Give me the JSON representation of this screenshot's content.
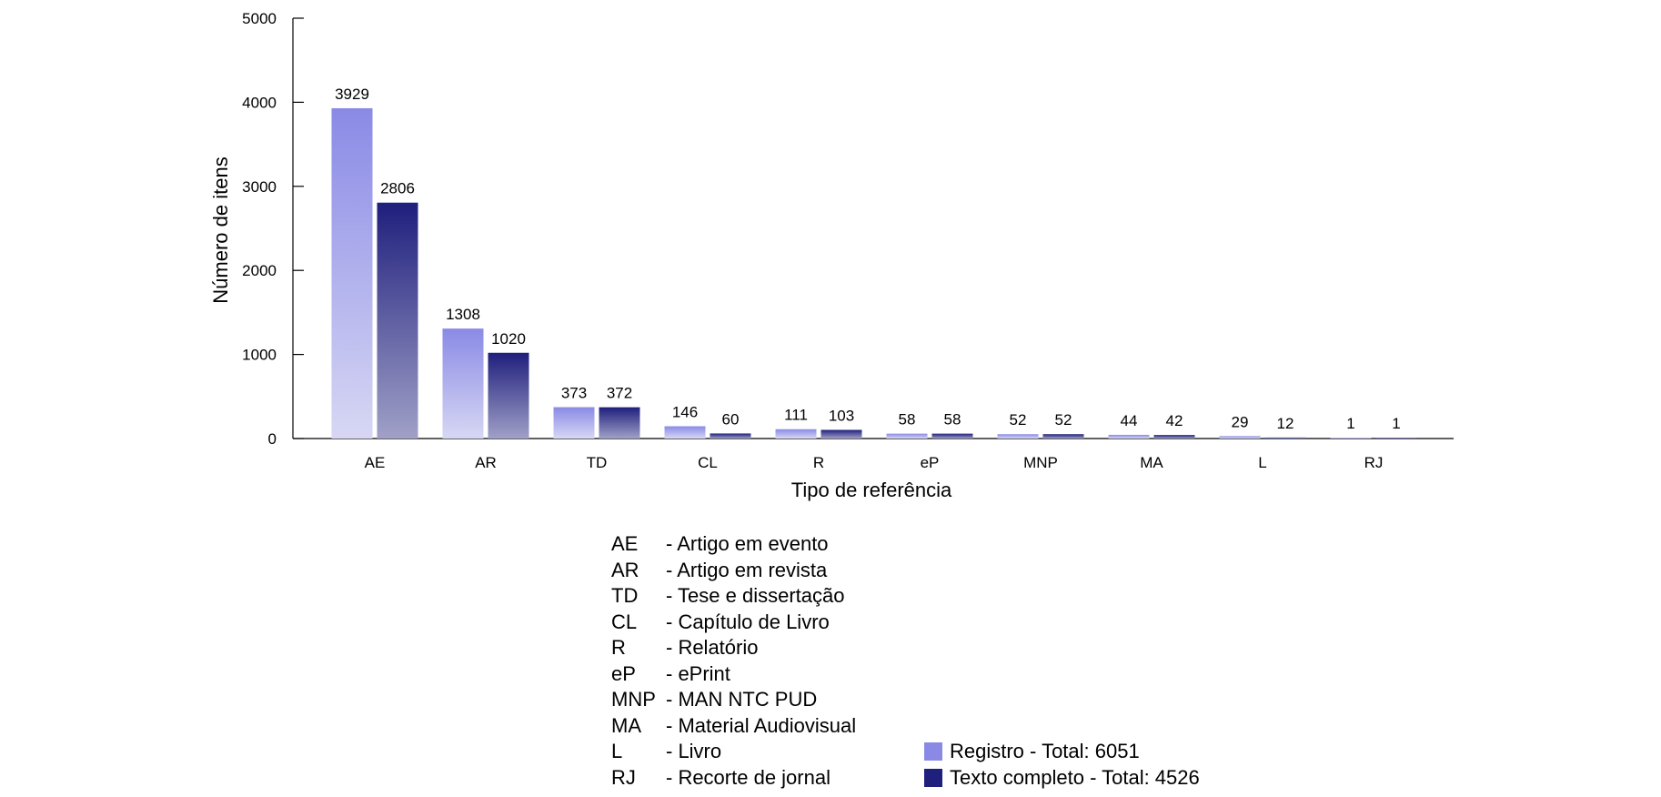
{
  "chart_data": {
    "type": "bar",
    "xlabel": "Tipo de referência",
    "ylabel": "Número de itens",
    "ylim": [
      0,
      5000
    ],
    "yticks": [
      0,
      1000,
      2000,
      3000,
      4000,
      5000
    ],
    "categories": [
      "AE",
      "AR",
      "TD",
      "CL",
      "R",
      "eP",
      "MNP",
      "MA",
      "L",
      "RJ"
    ],
    "series": [
      {
        "name": "Registro - Total: 6051",
        "color": "#8a8ae6",
        "values": [
          3929,
          1308,
          373,
          146,
          111,
          58,
          52,
          44,
          29,
          1
        ]
      },
      {
        "name": "Texto completo - Total: 4526",
        "color": "#1f1f7d",
        "values": [
          2806,
          1020,
          372,
          60,
          103,
          58,
          52,
          42,
          12,
          1
        ]
      }
    ],
    "legend_placement": "bottom",
    "grid": false
  },
  "abbreviations": [
    {
      "code": "AE",
      "desc": "- Artigo em evento"
    },
    {
      "code": "AR",
      "desc": "- Artigo em revista"
    },
    {
      "code": "TD",
      "desc": "- Tese e dissertação"
    },
    {
      "code": "CL",
      "desc": "- Capítulo de Livro"
    },
    {
      "code": "R",
      "desc": "- Relatório"
    },
    {
      "code": "eP",
      "desc": "- ePrint"
    },
    {
      "code": "MNP",
      "desc": "- MAN NTC PUD"
    },
    {
      "code": "MA",
      "desc": "- Material Audiovisual"
    },
    {
      "code": "L",
      "desc": "- Livro"
    },
    {
      "code": "RJ",
      "desc": "- Recorte de jornal"
    }
  ]
}
